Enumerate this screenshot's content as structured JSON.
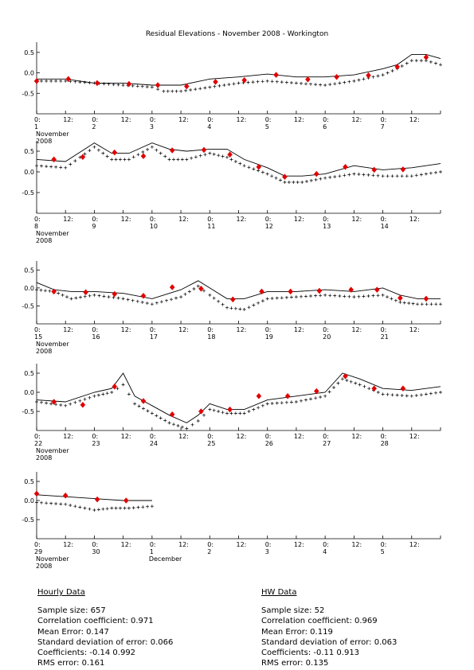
{
  "title": "Residual Elevations - November 2008 - Workington",
  "time_labels": [
    "0:",
    "12:"
  ],
  "month_label": "November",
  "year_label": "2008",
  "next_month_label": "December",
  "chart_data": [
    {
      "type": "line",
      "ylim": [
        -1.0,
        0.75
      ],
      "yticks": [
        0.5,
        0.0,
        -0.5
      ],
      "ytick_labels": [
        "0.5",
        "0.0",
        "-0.5"
      ],
      "xlim_days": [
        1,
        8
      ],
      "day_labels": [
        "1",
        "2",
        "3",
        "4",
        "5",
        "6",
        "7"
      ],
      "series": [
        {
          "style": "line",
          "x": [
            1,
            1.5,
            2,
            2.5,
            3,
            3.5,
            4,
            4.5,
            5,
            5.5,
            6,
            6.5,
            7,
            7.25,
            7.5,
            7.75,
            8
          ],
          "y": [
            -0.15,
            -0.15,
            -0.25,
            -0.25,
            -0.3,
            -0.3,
            -0.15,
            -0.1,
            -0.03,
            -0.1,
            -0.1,
            -0.05,
            0.1,
            0.2,
            0.45,
            0.45,
            0.35
          ]
        },
        {
          "style": "cross",
          "x": [
            1,
            1.5,
            2,
            2.5,
            3,
            3.2,
            3.5,
            4,
            4.5,
            5,
            5.5,
            6,
            6.5,
            7,
            7.25,
            7.5,
            7.75,
            8
          ],
          "y": [
            -0.2,
            -0.2,
            -0.25,
            -0.3,
            -0.35,
            -0.45,
            -0.45,
            -0.35,
            -0.25,
            -0.2,
            -0.25,
            -0.3,
            -0.2,
            -0.05,
            0.1,
            0.3,
            0.3,
            0.2
          ]
        },
        {
          "style": "marker",
          "x": [
            1,
            1.55,
            2.05,
            2.6,
            3.1,
            3.6,
            4.1,
            4.6,
            5.15,
            5.7,
            6.2,
            6.75,
            7.25,
            7.75
          ],
          "y": [
            -0.2,
            -0.15,
            -0.25,
            -0.27,
            -0.3,
            -0.33,
            -0.22,
            -0.18,
            -0.05,
            -0.16,
            -0.1,
            -0.06,
            0.15,
            0.38
          ]
        }
      ]
    },
    {
      "type": "line",
      "ylim": [
        -1.0,
        0.75
      ],
      "yticks": [
        0.5,
        0.0,
        -0.5
      ],
      "ytick_labels": [
        "0.5",
        "0.0",
        "-0.5"
      ],
      "xlim_days": [
        8,
        15
      ],
      "day_labels": [
        "8",
        "9",
        "10",
        "11",
        "12",
        "13",
        "14"
      ],
      "series": [
        {
          "style": "line",
          "x": [
            8,
            8.5,
            9,
            9.3,
            9.6,
            10,
            10.3,
            10.6,
            11,
            11.3,
            11.6,
            12,
            12.3,
            12.6,
            13,
            13.5,
            14,
            14.5,
            15
          ],
          "y": [
            0.3,
            0.25,
            0.7,
            0.45,
            0.45,
            0.7,
            0.55,
            0.5,
            0.55,
            0.55,
            0.3,
            0.1,
            -0.1,
            -0.1,
            -0.05,
            0.15,
            0.05,
            0.1,
            0.2
          ]
        },
        {
          "style": "cross",
          "x": [
            8,
            8.5,
            9,
            9.3,
            9.6,
            10,
            10.3,
            10.6,
            11,
            11.3,
            11.6,
            12,
            12.3,
            12.6,
            13,
            13.5,
            14,
            14.5,
            15
          ],
          "y": [
            0.15,
            0.1,
            0.6,
            0.3,
            0.3,
            0.6,
            0.3,
            0.3,
            0.45,
            0.35,
            0.15,
            -0.05,
            -0.25,
            -0.25,
            -0.15,
            -0.05,
            -0.1,
            -0.1,
            0.0
          ]
        },
        {
          "style": "marker",
          "x": [
            8.3,
            8.8,
            9.35,
            9.85,
            10.35,
            10.9,
            11.35,
            11.85,
            12.3,
            12.85,
            13.35,
            13.85,
            14.35
          ],
          "y": [
            0.3,
            0.36,
            0.47,
            0.38,
            0.52,
            0.53,
            0.42,
            0.12,
            -0.12,
            -0.05,
            0.12,
            0.05,
            0.06
          ]
        }
      ]
    },
    {
      "type": "line",
      "ylim": [
        -1.0,
        0.75
      ],
      "yticks": [
        0.5,
        0.0,
        -0.5
      ],
      "ytick_labels": [
        "0.5",
        "0.0",
        "-0.5"
      ],
      "xlim_days": [
        15,
        22
      ],
      "day_labels": [
        "15",
        "16",
        "17",
        "18",
        "19",
        "20",
        "21"
      ],
      "series": [
        {
          "style": "line",
          "x": [
            15,
            15.3,
            15.6,
            16,
            16.5,
            17,
            17.5,
            17.8,
            18,
            18.3,
            18.6,
            19,
            19.5,
            20,
            20.5,
            21,
            21.3,
            21.6,
            22
          ],
          "y": [
            0.15,
            -0.05,
            -0.1,
            -0.1,
            -0.15,
            -0.3,
            -0.05,
            0.2,
            0.0,
            -0.3,
            -0.3,
            -0.1,
            -0.1,
            -0.05,
            -0.1,
            0.0,
            -0.2,
            -0.3,
            -0.3
          ]
        },
        {
          "style": "cross",
          "x": [
            15,
            15.3,
            15.6,
            16,
            16.5,
            17,
            17.5,
            17.8,
            18,
            18.3,
            18.6,
            19,
            19.5,
            20,
            20.5,
            21,
            21.3,
            21.6,
            22
          ],
          "y": [
            -0.05,
            -0.1,
            -0.3,
            -0.2,
            -0.3,
            -0.45,
            -0.25,
            0.05,
            -0.2,
            -0.55,
            -0.6,
            -0.3,
            -0.25,
            -0.2,
            -0.25,
            -0.2,
            -0.4,
            -0.45,
            -0.45
          ]
        },
        {
          "style": "marker",
          "x": [
            15.3,
            15.85,
            16.35,
            16.85,
            17.35,
            17.85,
            18.4,
            18.9,
            19.4,
            19.9,
            20.45,
            20.9,
            21.3,
            21.75
          ],
          "y": [
            -0.1,
            -0.12,
            -0.17,
            -0.22,
            0.02,
            -0.02,
            -0.32,
            -0.1,
            -0.1,
            -0.08,
            -0.05,
            -0.05,
            -0.28,
            -0.3
          ]
        }
      ]
    },
    {
      "type": "line",
      "ylim": [
        -1.0,
        0.75
      ],
      "yticks": [
        0.5,
        0.0,
        -0.5
      ],
      "ytick_labels": [
        "0.5",
        "0.0",
        "-0.5"
      ],
      "xlim_days": [
        22,
        29
      ],
      "day_labels": [
        "22",
        "23",
        "24",
        "25",
        "26",
        "27",
        "28"
      ],
      "series": [
        {
          "style": "line",
          "x": [
            22,
            22.5,
            23,
            23.3,
            23.5,
            23.7,
            24,
            24.3,
            24.6,
            24.8,
            25,
            25.3,
            25.6,
            26,
            26.5,
            27,
            27.3,
            27.6,
            28,
            28.5,
            29
          ],
          "y": [
            -0.2,
            -0.25,
            0.0,
            0.1,
            0.5,
            -0.1,
            -0.35,
            -0.6,
            -0.8,
            -0.6,
            -0.3,
            -0.45,
            -0.45,
            -0.2,
            -0.1,
            0.0,
            0.5,
            0.35,
            0.1,
            0.05,
            0.15
          ]
        },
        {
          "style": "cross",
          "x": [
            22,
            22.5,
            23,
            23.3,
            23.5,
            23.7,
            24,
            24.3,
            24.6,
            24.8,
            25,
            25.3,
            25.6,
            26,
            26.5,
            27,
            27.3,
            27.6,
            28,
            28.5,
            29
          ],
          "y": [
            -0.25,
            -0.35,
            -0.1,
            0.0,
            0.2,
            -0.3,
            -0.55,
            -0.8,
            -0.95,
            -0.75,
            -0.45,
            -0.55,
            -0.55,
            -0.3,
            -0.25,
            -0.1,
            0.35,
            0.2,
            -0.05,
            -0.1,
            0.0
          ]
        },
        {
          "style": "marker",
          "x": [
            22.3,
            22.8,
            23.35,
            23.85,
            24.35,
            24.85,
            25.35,
            25.85,
            26.35,
            26.85,
            27.35,
            27.85,
            28.35
          ],
          "y": [
            -0.25,
            -0.33,
            0.15,
            -0.23,
            -0.58,
            -0.5,
            -0.45,
            -0.1,
            -0.1,
            0.03,
            0.42,
            0.1,
            0.1
          ]
        }
      ]
    },
    {
      "type": "line",
      "ylim": [
        -1.0,
        0.75
      ],
      "yticks": [
        0.5,
        0.0,
        -0.5
      ],
      "ytick_labels": [
        "0.5",
        "0.0",
        "-0.5"
      ],
      "xlim_days": [
        29,
        36
      ],
      "day_labels": [
        "29",
        "30",
        "1",
        "2",
        "3",
        "4",
        "5"
      ],
      "series": [
        {
          "style": "line",
          "x": [
            29,
            29.5,
            30,
            30.5,
            31
          ],
          "y": [
            0.15,
            0.1,
            0.05,
            0.0,
            0.0
          ]
        },
        {
          "style": "cross",
          "x": [
            29,
            29.5,
            30,
            30.3,
            30.6,
            31
          ],
          "y": [
            -0.05,
            -0.1,
            -0.25,
            -0.2,
            -0.2,
            -0.15
          ]
        },
        {
          "style": "marker",
          "x": [
            29,
            29.5,
            30.05,
            30.55
          ],
          "y": [
            0.18,
            0.13,
            0.03,
            0.0
          ]
        }
      ]
    }
  ],
  "stats": {
    "hourly": {
      "heading": "Hourly Data",
      "lines": [
        "Sample size: 657",
        "Correlation coefficient: 0.971",
        "Mean Error: 0.147",
        "Standard deviation of error: 0.066",
        "Coefficients: -0.14  0.992",
        "RMS error: 0.161"
      ]
    },
    "hw": {
      "heading": "HW Data",
      "lines": [
        "Sample size: 52",
        "Correlation coefficient: 0.969",
        "Mean Error: 0.119",
        "Standard deviation of error: 0.063",
        "Coefficients: -0.11  0.913",
        "RMS error: 0.135"
      ]
    }
  }
}
